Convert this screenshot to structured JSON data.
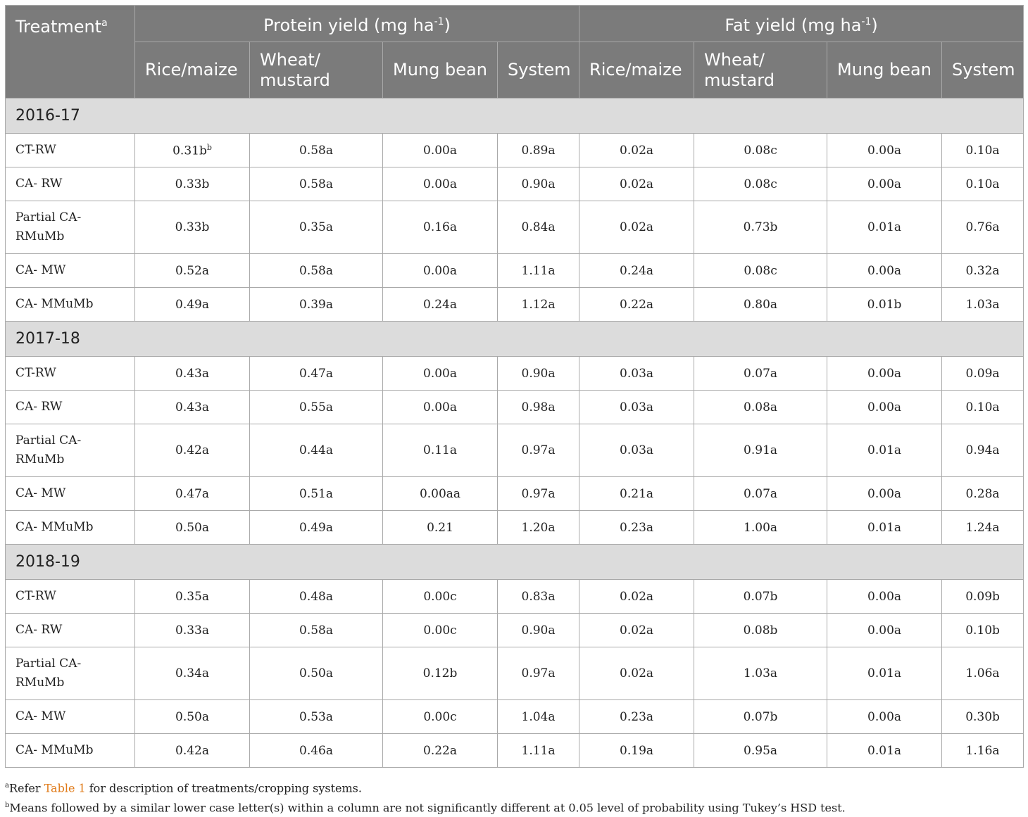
{
  "header": {
    "treatment": "Treatment",
    "treatment_sup": "a",
    "protein_pre": "Protein yield (mg ha",
    "fat_pre": "Fat yield (mg ha",
    "unit_sup": "-1",
    "close": ")",
    "cols": [
      "Rice/maize",
      "Wheat/ mustard",
      "Mung bean",
      "System",
      "Rice/maize",
      "Wheat/ mustard",
      "Mung bean",
      "System"
    ]
  },
  "sections": [
    {
      "year": "2016-17",
      "rows": [
        {
          "label": "CT-RW",
          "cells": [
            "0.31b",
            "0.58a",
            "0.00a",
            "0.89a",
            "0.02a",
            "0.08c",
            "0.00a",
            "0.10a"
          ],
          "first_sup": "b"
        },
        {
          "label": "CA- RW",
          "cells": [
            "0.33b",
            "0.58a",
            "0.00a",
            "0.90a",
            "0.02a",
            "0.08c",
            "0.00a",
            "0.10a"
          ]
        },
        {
          "label": "Partial CA-RMuMb",
          "cells": [
            "0.33b",
            "0.35a",
            "0.16a",
            "0.84a",
            "0.02a",
            "0.73b",
            "0.01a",
            "0.76a"
          ]
        },
        {
          "label": "CA- MW",
          "cells": [
            "0.52a",
            "0.58a",
            "0.00a",
            "1.11a",
            "0.24a",
            "0.08c",
            "0.00a",
            "0.32a"
          ]
        },
        {
          "label": "CA- MMuMb",
          "cells": [
            "0.49a",
            "0.39a",
            "0.24a",
            "1.12a",
            "0.22a",
            "0.80a",
            "0.01b",
            "1.03a"
          ]
        }
      ]
    },
    {
      "year": "2017-18",
      "rows": [
        {
          "label": "CT-RW",
          "cells": [
            "0.43a",
            "0.47a",
            "0.00a",
            "0.90a",
            "0.03a",
            "0.07a",
            "0.00a",
            "0.09a"
          ]
        },
        {
          "label": "CA- RW",
          "cells": [
            "0.43a",
            "0.55a",
            "0.00a",
            "0.98a",
            "0.03a",
            "0.08a",
            "0.00a",
            "0.10a"
          ]
        },
        {
          "label": "Partial CA-RMuMb",
          "cells": [
            "0.42a",
            "0.44a",
            "0.11a",
            "0.97a",
            "0.03a",
            "0.91a",
            "0.01a",
            "0.94a"
          ]
        },
        {
          "label": "CA- MW",
          "cells": [
            "0.47a",
            "0.51a",
            "0.00aa",
            "0.97a",
            "0.21a",
            "0.07a",
            "0.00a",
            "0.28a"
          ]
        },
        {
          "label": "CA- MMuMb",
          "cells": [
            "0.50a",
            "0.49a",
            "0.21",
            "1.20a",
            "0.23a",
            "1.00a",
            "0.01a",
            "1.24a"
          ]
        }
      ]
    },
    {
      "year": "2018-19",
      "rows": [
        {
          "label": "CT-RW",
          "cells": [
            "0.35a",
            "0.48a",
            "0.00c",
            "0.83a",
            "0.02a",
            "0.07b",
            "0.00a",
            "0.09b"
          ]
        },
        {
          "label": "CA- RW",
          "cells": [
            "0.33a",
            "0.58a",
            "0.00c",
            "0.90a",
            "0.02a",
            "0.08b",
            "0.00a",
            "0.10b"
          ]
        },
        {
          "label": "Partial CA-RMuMb",
          "cells": [
            "0.34a",
            "0.50a",
            "0.12b",
            "0.97a",
            "0.02a",
            "1.03a",
            "0.01a",
            "1.06a"
          ]
        },
        {
          "label": "CA- MW",
          "cells": [
            "0.50a",
            "0.53a",
            "0.00c",
            "1.04a",
            "0.23a",
            "0.07b",
            "0.00a",
            "0.30b"
          ]
        },
        {
          "label": "CA- MMuMb",
          "cells": [
            "0.42a",
            "0.46a",
            "0.22a",
            "1.11a",
            "0.19a",
            "0.95a",
            "0.01a",
            "1.16a"
          ]
        }
      ]
    }
  ],
  "footnotes": {
    "a_sup": "a",
    "a_pre": "Refer ",
    "a_link": "Table 1",
    "a_post": " for description of treatments/cropping systems.",
    "b_sup": "b",
    "b_text": "Means followed by a similar lower case letter(s) within a column are not significantly different at 0.05 level of probability using Tukey’s HSD test."
  },
  "colors": {
    "header_bg": "#7b7b7b",
    "year_bg": "#dcdcdc",
    "link": "#e07b1a"
  }
}
